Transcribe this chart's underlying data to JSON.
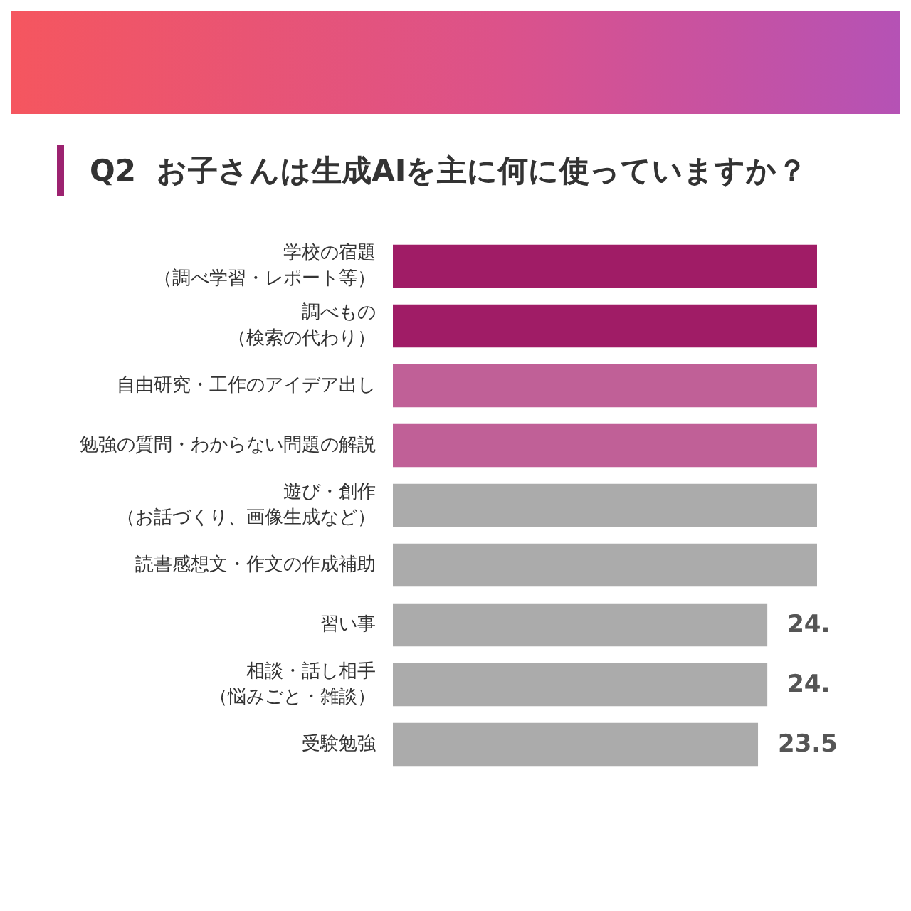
{
  "chart_data": {
    "type": "bar",
    "orientation": "horizontal",
    "title": "Q2  お子さんは生成AIを主に何に使っていますか？",
    "categories": [
      "学校の宿題（調べ学習・レポート等）",
      "調べもの（検索の代わり）",
      "自由研究・工作のアイデア出し",
      "勉強の質問・わからない問題の解説",
      "遊び・創作（お話づくり、画像生成など）",
      "読書感想文・作文の作成補助",
      "習い事",
      "相談・話し相手（悩みごと・雑談）",
      "受験勉強"
    ],
    "values": [
      27.3,
      27.3,
      27.3,
      27.3,
      27.3,
      27.3,
      24.1,
      24.1,
      23.5
    ],
    "colors": [
      "#a01c66",
      "#a01c66",
      "#c06097",
      "#c06097",
      "#ababab",
      "#ababab",
      "#ababab",
      "#ababab",
      "#ababab"
    ],
    "value_labels": [
      null,
      null,
      null,
      null,
      null,
      null,
      "24.",
      "24.",
      "23.5"
    ],
    "xlim": [
      0,
      27.3
    ],
    "tick_labels": "y"
  }
}
